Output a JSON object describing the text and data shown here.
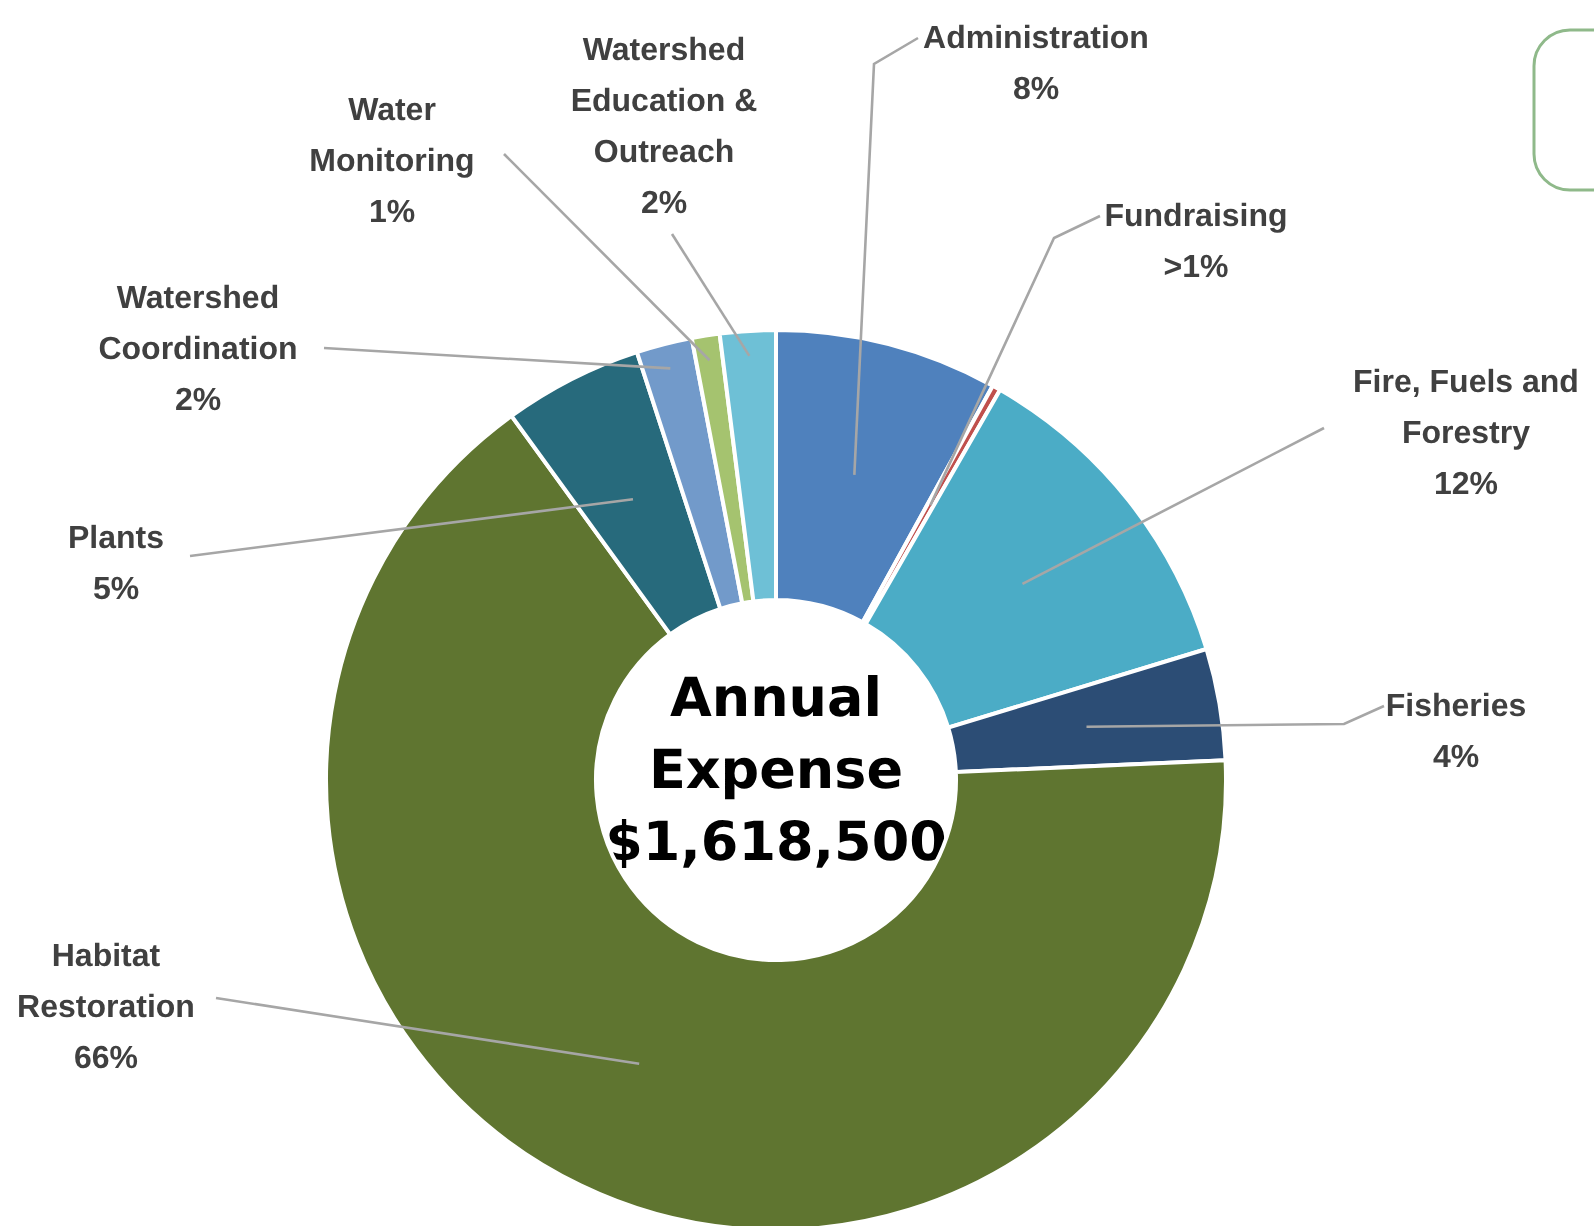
{
  "chart_data": {
    "type": "donut",
    "title": "Annual Expense",
    "subtitle": "$1,618,500",
    "categories": [
      "Administration",
      "Fundraising",
      "Fire, Fuels and Forestry",
      "Fisheries",
      "Habitat Restoration",
      "Plants",
      "Watershed Coordination",
      "Water Monitoring",
      "Watershed Education & Outreach"
    ],
    "values": [
      8,
      0.3,
      12,
      4,
      65.7,
      5,
      2,
      1,
      2
    ],
    "value_labels": [
      "8%",
      ">1%",
      "12%",
      "4%",
      "66%",
      "5%",
      "2%",
      "1%",
      "2%"
    ],
    "colors": [
      "#4f81bd",
      "#c0504d",
      "#4bacc6",
      "#2c4d75",
      "#5f7530",
      "#276a7c",
      "#729aca",
      "#a5c36f",
      "#6ec0d6"
    ]
  }
}
